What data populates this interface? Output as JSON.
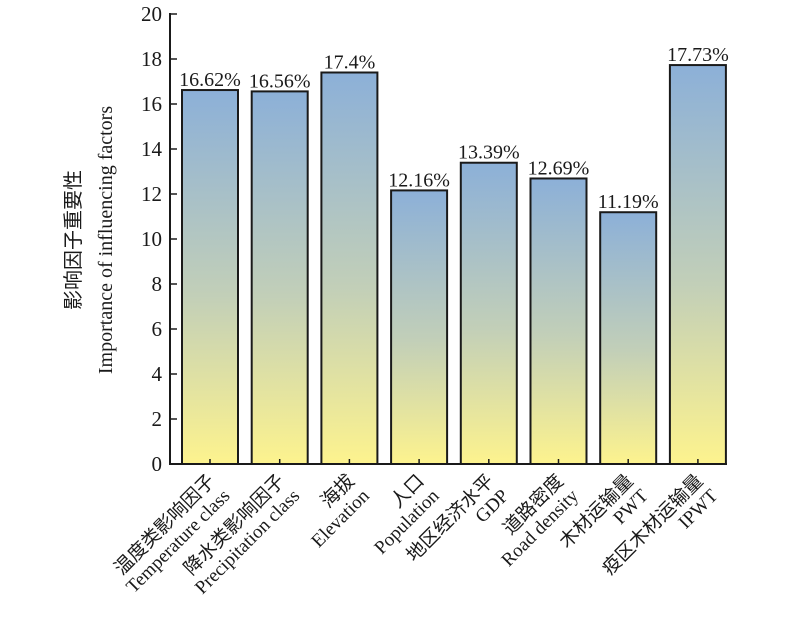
{
  "chart_data": {
    "type": "bar",
    "title": "",
    "ylabel_cn": "影响因子重要性",
    "ylabel_en": "Importance of influencing factors",
    "xlabel": "",
    "ylim": [
      0,
      20
    ],
    "yticks": [
      0,
      2,
      4,
      6,
      8,
      10,
      12,
      14,
      16,
      18,
      20
    ],
    "grid": false,
    "legend": "none",
    "categories": [
      {
        "cn": "温度类影响因子",
        "en": "Temperature class"
      },
      {
        "cn": "降水类影响因子",
        "en": "Precipitation class"
      },
      {
        "cn": "海拔",
        "en": "Elevation"
      },
      {
        "cn": "人口",
        "en": "Population"
      },
      {
        "cn": "地区经济水平",
        "en": "GDP"
      },
      {
        "cn": "道路密度",
        "en": "Road density"
      },
      {
        "cn": "木材运输量",
        "en": "PWT"
      },
      {
        "cn": "疫区木材运输量",
        "en": "IPWT"
      }
    ],
    "values": [
      16.62,
      16.56,
      17.4,
      12.16,
      13.39,
      12.69,
      11.19,
      17.73
    ],
    "data_labels": [
      "16.62%",
      "16.56%",
      "17.4%",
      "12.16%",
      "13.39%",
      "12.69%",
      "11.19%",
      "17.73%"
    ],
    "colors": {
      "bar_top": "#8cb0d8",
      "bar_bottom": "#fdf38e",
      "bar_stroke": "#1a1a1a",
      "axis": "#1a1a1a"
    }
  }
}
